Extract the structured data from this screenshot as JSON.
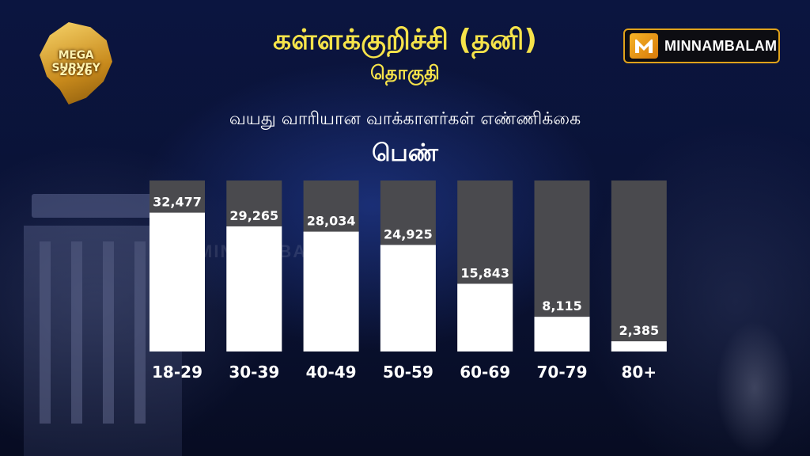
{
  "header": {
    "title": "கள்ளக்குறிச்சி (தனி)",
    "title_sub": "தொகுதி",
    "chart_subtitle": "வயது வாரியான வாக்காளர்கள் எண்ணிக்கை",
    "gender": "பெண்"
  },
  "logo_left": {
    "line1": "MEGA SURVEY",
    "line2": "2026"
  },
  "brand": {
    "name": "MINNAMBALAM"
  },
  "watermark": "MINNAMBALAM",
  "colors": {
    "title": "#f6e34a",
    "bar_fill": "#ffffff",
    "bar_track": "#4a4a4e",
    "brand_accent": "#f5b326"
  },
  "chart_data": {
    "type": "bar",
    "title": "வயது வாரியான வாக்காளர்கள் எண்ணிக்கை",
    "categories": [
      "18-29",
      "30-39",
      "40-49",
      "50-59",
      "60-69",
      "70-79",
      "80+"
    ],
    "values": [
      32477,
      29265,
      28034,
      24925,
      15843,
      8115,
      2385
    ],
    "value_labels": [
      "32,477",
      "29,265",
      "28,034",
      "24,925",
      "15,843",
      "8,115",
      "2,385"
    ],
    "ylim": [
      0,
      40000
    ],
    "grid": false,
    "legend": "none"
  }
}
